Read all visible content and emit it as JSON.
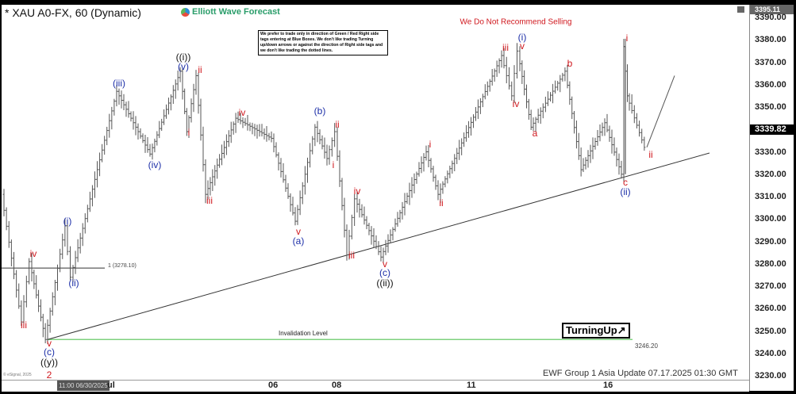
{
  "header": {
    "symbol_title": "* XAU A0-FX, 60 (Dynamic)",
    "logo_text": "Elliott Wave Forecast"
  },
  "notice": "We prefer to trade only in direction of Green / Red Right side tags entering at Blue Boxes. We don't like trading Turning up/down arrows or against the direction of Right side tags and we don't like trading the dotted lines.",
  "warning": "We Do Not Recommend Selling",
  "fib_label": "1 (3278.10)",
  "invalidation_label": "Invalidation Level",
  "invalidation_value": "3246.20",
  "turning_label": "TurningUp",
  "footer": "EWF Group 1 Asia Update 07.17.2025 01:30 GMT",
  "copyright": "© eSignal, 2025",
  "cursor_time": "11:00 06/30/2025",
  "colors": {
    "red": "#d0191f",
    "blue": "#1d2fa8",
    "green": "#7fd27f",
    "bars": "#555555"
  },
  "wave_labels": [
    "iv",
    "iii",
    "v",
    "(c)",
    "((y))",
    "2",
    "(i)",
    "(ii)",
    "(iii)",
    "(iv)",
    "((i))",
    "(v)",
    "ii",
    "i",
    "iii",
    "iv",
    "v",
    "(a)",
    "(b)",
    "ii",
    "i",
    "iv",
    "iii",
    "v",
    "(c)",
    "((ii))",
    "i",
    "ii",
    "iii",
    "(i)",
    "v",
    "iv",
    "a",
    "b",
    "c",
    "(ii)",
    "i",
    "ii"
  ],
  "chart_data": {
    "type": "ohlc",
    "price_axis": {
      "ticks": [
        "3390.00",
        "3380.00",
        "3370.00",
        "3360.00",
        "3350.00",
        "3330.00",
        "3320.00",
        "3310.00",
        "3300.00",
        "3290.00",
        "3280.00",
        "3270.00",
        "3260.00",
        "3250.00",
        "3240.00",
        "3230.00"
      ],
      "range": [
        3230,
        3390
      ],
      "last_price": "3339.82",
      "top_tag": "3395.11"
    },
    "time_axis": {
      "ticks": [
        "ul",
        "06",
        "08",
        "11",
        "16"
      ]
    },
    "price_pivots": [
      3311,
      3254,
      3281,
      3246.2,
      3297,
      3274,
      3357,
      3329,
      3366,
      3339,
      3364,
      3311,
      3345,
      3336,
      3299,
      3341,
      3327,
      3339,
      3284,
      3309,
      3283,
      3330,
      3311,
      3373,
      3355,
      3375,
      3341,
      3366,
      3322,
      3343,
      3320,
      3377,
      3355,
      3332
    ],
    "projection_target": 3364,
    "fib_level": 3278.1,
    "invalidation_level": 3246.2
  }
}
